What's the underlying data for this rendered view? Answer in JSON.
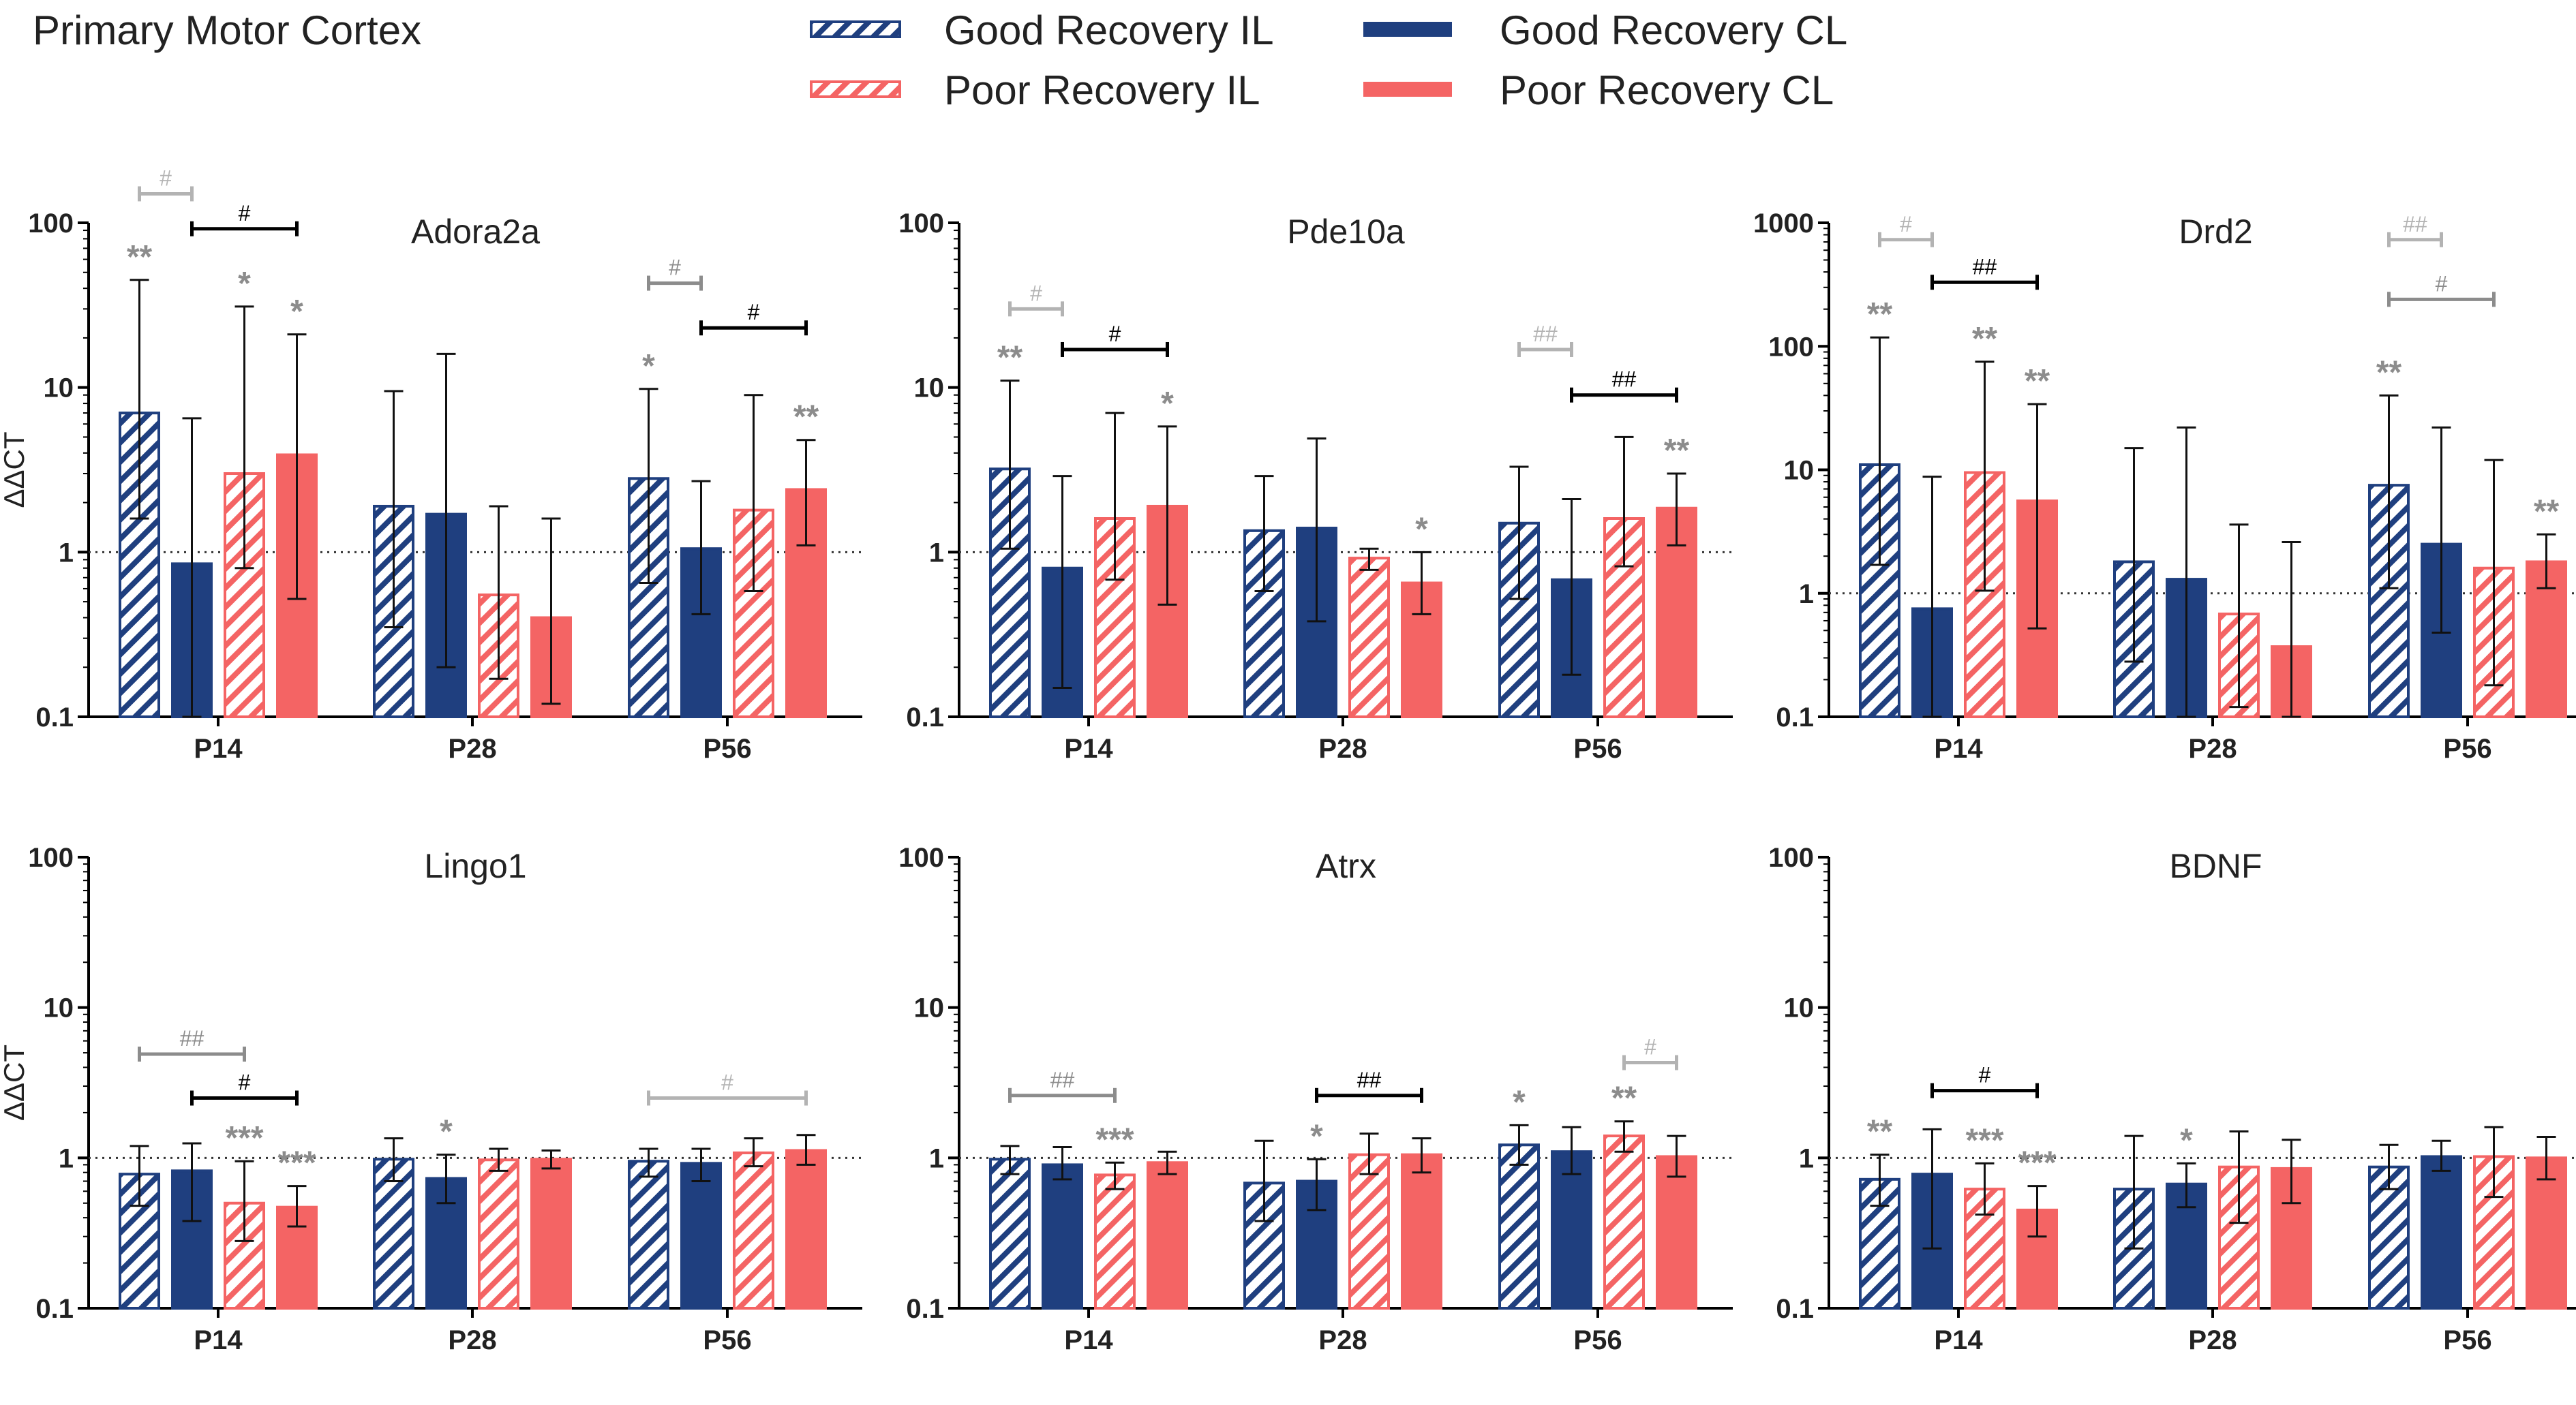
{
  "figure": {
    "title": "Primary Motor  Cortex",
    "legend": [
      {
        "label": "Good Recovery IL",
        "color": "#1f3f7f",
        "fill": "hatched"
      },
      {
        "label": "Poor Recovery IL",
        "color": "#f46464",
        "fill": "hatched"
      },
      {
        "label": "Good Recovery CL",
        "color": "#1f3f7f",
        "fill": "solid"
      },
      {
        "label": "Poor Recovery CL",
        "color": "#f46464",
        "fill": "solid"
      }
    ]
  },
  "colors": {
    "good": "#1f3f7f",
    "poor": "#f46464",
    "sig_grey": "#8c8c8c",
    "sig_light": "#b3b3b3",
    "bracket_dark": "#000000"
  },
  "chart_data": [
    {
      "type": "bar",
      "title": "Adora2a",
      "ylabel": "ΔΔCT",
      "yscale": "log",
      "ylim": [
        0.1,
        100
      ],
      "yticks": [
        "0.1",
        "1",
        "10",
        "100"
      ],
      "categories": [
        "P14",
        "P28",
        "P56"
      ],
      "reference_line": 1,
      "series": [
        {
          "name": "Good Recovery IL",
          "values": [
            7.0,
            1.9,
            2.8
          ],
          "err_low": [
            1.6,
            0.35,
            0.65
          ],
          "err_high": [
            45,
            9.5,
            9.8
          ]
        },
        {
          "name": "Good Recovery CL",
          "values": [
            0.85,
            1.7,
            1.05
          ],
          "err_low": [
            0.1,
            0.2,
            0.42
          ],
          "err_high": [
            6.5,
            16,
            2.7
          ]
        },
        {
          "name": "Poor Recovery IL",
          "values": [
            3.0,
            0.55,
            1.8
          ],
          "err_low": [
            0.8,
            0.17,
            0.58
          ],
          "err_high": [
            31,
            1.9,
            9.0
          ]
        },
        {
          "name": "Poor Recovery CL",
          "values": [
            3.9,
            0.4,
            2.4
          ],
          "err_low": [
            0.52,
            0.12,
            1.1
          ],
          "err_high": [
            21,
            1.6,
            4.8
          ]
        }
      ],
      "annotations": [
        {
          "group": 0,
          "series": 0,
          "text": "**",
          "shade": "grey"
        },
        {
          "group": 0,
          "series": 2,
          "text": "*",
          "shade": "grey"
        },
        {
          "group": 0,
          "series": 3,
          "text": "*",
          "shade": "grey"
        },
        {
          "group": 2,
          "series": 0,
          "text": "*",
          "shade": "grey"
        },
        {
          "group": 2,
          "series": 3,
          "text": "**",
          "shade": "grey"
        }
      ],
      "brackets": [
        {
          "group": 0,
          "from": 0,
          "to": 1,
          "text": "#",
          "shade": "light",
          "level": 150
        },
        {
          "group": 0,
          "from": 1,
          "to": 3,
          "text": "#",
          "shade": "dark",
          "level": 92
        },
        {
          "group": 2,
          "from": 0,
          "to": 1,
          "text": "#",
          "shade": "grey",
          "level": 43
        },
        {
          "group": 2,
          "from": 1,
          "to": 3,
          "text": "#",
          "shade": "dark",
          "level": 23
        }
      ]
    },
    {
      "type": "bar",
      "title": "Pde10a",
      "ylabel": "",
      "yscale": "log",
      "ylim": [
        0.1,
        100
      ],
      "yticks": [
        "0.1",
        "1",
        "10",
        "100"
      ],
      "categories": [
        "P14",
        "P28",
        "P56"
      ],
      "reference_line": 1,
      "series": [
        {
          "name": "Good Recovery IL",
          "values": [
            3.2,
            1.35,
            1.5
          ],
          "err_low": [
            1.05,
            0.58,
            0.52
          ],
          "err_high": [
            11,
            2.9,
            3.3
          ]
        },
        {
          "name": "Good Recovery CL",
          "values": [
            0.8,
            1.4,
            0.68
          ],
          "err_low": [
            0.15,
            0.38,
            0.18
          ],
          "err_high": [
            2.9,
            4.9,
            2.1
          ]
        },
        {
          "name": "Poor Recovery IL",
          "values": [
            1.6,
            0.92,
            1.6
          ],
          "err_low": [
            0.68,
            0.78,
            0.82
          ],
          "err_high": [
            7.0,
            1.05,
            5.0
          ]
        },
        {
          "name": "Poor Recovery CL",
          "values": [
            1.9,
            0.65,
            1.85
          ],
          "err_low": [
            0.48,
            0.42,
            1.1
          ],
          "err_high": [
            5.8,
            1.0,
            3.0
          ]
        }
      ],
      "annotations": [
        {
          "group": 0,
          "series": 0,
          "text": "**",
          "shade": "grey"
        },
        {
          "group": 0,
          "series": 3,
          "text": "*",
          "shade": "grey"
        },
        {
          "group": 1,
          "series": 3,
          "text": "*",
          "shade": "grey"
        },
        {
          "group": 2,
          "series": 3,
          "text": "**",
          "shade": "grey"
        }
      ],
      "brackets": [
        {
          "group": 0,
          "from": 0,
          "to": 1,
          "text": "#",
          "shade": "light",
          "level": 30
        },
        {
          "group": 0,
          "from": 1,
          "to": 3,
          "text": "#",
          "shade": "dark",
          "level": 17
        },
        {
          "group": 2,
          "from": 0,
          "to": 1,
          "text": "##",
          "shade": "light",
          "level": 17
        },
        {
          "group": 2,
          "from": 1,
          "to": 3,
          "text": "##",
          "shade": "dark",
          "level": 9
        }
      ]
    },
    {
      "type": "bar",
      "title": "Drd2",
      "ylabel": "",
      "yscale": "log",
      "ylim": [
        0.1,
        1000
      ],
      "yticks": [
        "0.1",
        "1",
        "10",
        "100",
        "1000"
      ],
      "categories": [
        "P14",
        "P28",
        "P56"
      ],
      "reference_line": 1,
      "series": [
        {
          "name": "Good Recovery IL",
          "values": [
            11,
            1.8,
            7.5
          ],
          "err_low": [
            1.7,
            0.28,
            1.1
          ],
          "err_high": [
            118,
            15,
            40
          ]
        },
        {
          "name": "Good Recovery CL",
          "values": [
            0.75,
            1.3,
            2.5
          ],
          "err_low": [
            0.1,
            0.1,
            0.48
          ],
          "err_high": [
            8.8,
            22,
            22
          ]
        },
        {
          "name": "Poor Recovery IL",
          "values": [
            9.5,
            0.68,
            1.6
          ],
          "err_low": [
            1.05,
            0.12,
            0.18
          ],
          "err_high": [
            75,
            3.6,
            12
          ]
        },
        {
          "name": "Poor Recovery CL",
          "values": [
            5.6,
            0.37,
            1.8
          ],
          "err_low": [
            0.52,
            0.1,
            1.1
          ],
          "err_high": [
            34,
            2.6,
            3.0
          ]
        }
      ],
      "annotations": [
        {
          "group": 0,
          "series": 0,
          "text": "**",
          "shade": "grey"
        },
        {
          "group": 0,
          "series": 2,
          "text": "**",
          "shade": "grey"
        },
        {
          "group": 0,
          "series": 3,
          "text": "**",
          "shade": "grey"
        },
        {
          "group": 2,
          "series": 0,
          "text": "**",
          "shade": "grey"
        },
        {
          "group": 2,
          "series": 3,
          "text": "**",
          "shade": "grey"
        }
      ],
      "brackets": [
        {
          "group": 0,
          "from": 0,
          "to": 1,
          "text": "#",
          "shade": "light",
          "level": 730
        },
        {
          "group": 0,
          "from": 1,
          "to": 3,
          "text": "##",
          "shade": "dark",
          "level": 330
        },
        {
          "group": 2,
          "from": 0,
          "to": 1,
          "text": "##",
          "shade": "light",
          "level": 730
        },
        {
          "group": 2,
          "from": 0,
          "to": 2,
          "text": "#",
          "shade": "grey",
          "level": 240
        }
      ]
    },
    {
      "type": "bar",
      "title": "Lingo1",
      "ylabel": "ΔΔCT",
      "yscale": "log",
      "ylim": [
        0.1,
        100
      ],
      "yticks": [
        "0.1",
        "1",
        "10",
        "100"
      ],
      "categories": [
        "P14",
        "P28",
        "P56"
      ],
      "reference_line": 1,
      "series": [
        {
          "name": "Good Recovery IL",
          "values": [
            0.78,
            0.98,
            0.95
          ],
          "err_low": [
            0.48,
            0.7,
            0.75
          ],
          "err_high": [
            1.2,
            1.35,
            1.15
          ]
        },
        {
          "name": "Good Recovery CL",
          "values": [
            0.82,
            0.73,
            0.92
          ],
          "err_low": [
            0.38,
            0.5,
            0.7
          ],
          "err_high": [
            1.25,
            1.05,
            1.15
          ]
        },
        {
          "name": "Poor Recovery IL",
          "values": [
            0.5,
            0.97,
            1.08
          ],
          "err_low": [
            0.28,
            0.82,
            0.88
          ],
          "err_high": [
            0.95,
            1.15,
            1.35
          ]
        },
        {
          "name": "Poor Recovery CL",
          "values": [
            0.47,
            0.98,
            1.12
          ],
          "err_low": [
            0.35,
            0.85,
            0.9
          ],
          "err_high": [
            0.65,
            1.12,
            1.42
          ]
        }
      ],
      "annotations": [
        {
          "group": 0,
          "series": 2,
          "text": "***",
          "shade": "grey"
        },
        {
          "group": 0,
          "series": 3,
          "text": "***",
          "shade": "grey"
        },
        {
          "group": 1,
          "series": 1,
          "text": "*",
          "shade": "grey"
        }
      ],
      "brackets": [
        {
          "group": 0,
          "from": 0,
          "to": 2,
          "text": "##",
          "shade": "grey",
          "level": 4.9
        },
        {
          "group": 0,
          "from": 1,
          "to": 3,
          "text": "#",
          "shade": "dark",
          "level": 2.5
        },
        {
          "group": 2,
          "from": 0,
          "to": 3,
          "text": "#",
          "shade": "light",
          "level": 2.5
        }
      ]
    },
    {
      "type": "bar",
      "title": "Atrx",
      "ylabel": "",
      "yscale": "log",
      "ylim": [
        0.1,
        100
      ],
      "yticks": [
        "0.1",
        "1",
        "10",
        "100"
      ],
      "categories": [
        "P14",
        "P28",
        "P56"
      ],
      "reference_line": 1,
      "series": [
        {
          "name": "Good Recovery IL",
          "values": [
            0.98,
            0.68,
            1.22
          ],
          "err_low": [
            0.78,
            0.38,
            0.9
          ],
          "err_high": [
            1.2,
            1.3,
            1.65
          ]
        },
        {
          "name": "Good Recovery CL",
          "values": [
            0.9,
            0.7,
            1.1
          ],
          "err_low": [
            0.72,
            0.45,
            0.78
          ],
          "err_high": [
            1.18,
            0.98,
            1.6
          ]
        },
        {
          "name": "Poor Recovery IL",
          "values": [
            0.77,
            1.05,
            1.4
          ],
          "err_low": [
            0.62,
            0.78,
            1.1
          ],
          "err_high": [
            0.93,
            1.45,
            1.75
          ]
        },
        {
          "name": "Poor Recovery CL",
          "values": [
            0.93,
            1.05,
            1.02
          ],
          "err_low": [
            0.78,
            0.8,
            0.75
          ],
          "err_high": [
            1.1,
            1.35,
            1.4
          ]
        }
      ],
      "annotations": [
        {
          "group": 0,
          "series": 2,
          "text": "***",
          "shade": "grey"
        },
        {
          "group": 1,
          "series": 1,
          "text": "*",
          "shade": "grey"
        },
        {
          "group": 2,
          "series": 0,
          "text": "*",
          "shade": "grey"
        },
        {
          "group": 2,
          "series": 2,
          "text": "**",
          "shade": "grey"
        }
      ],
      "brackets": [
        {
          "group": 0,
          "from": 0,
          "to": 2,
          "text": "##",
          "shade": "grey",
          "level": 2.6
        },
        {
          "group": 1,
          "from": 1,
          "to": 3,
          "text": "##",
          "shade": "dark",
          "level": 2.6
        },
        {
          "group": 2,
          "from": 2,
          "to": 3,
          "text": "#",
          "shade": "light",
          "level": 4.3
        }
      ]
    },
    {
      "type": "bar",
      "title": "BDNF",
      "ylabel": "",
      "yscale": "log",
      "ylim": [
        0.1,
        100
      ],
      "yticks": [
        "0.1",
        "1",
        "10",
        "100"
      ],
      "categories": [
        "P14",
        "P28",
        "P56"
      ],
      "reference_line": 1,
      "series": [
        {
          "name": "Good Recovery IL",
          "values": [
            0.72,
            0.62,
            0.87
          ],
          "err_low": [
            0.48,
            0.25,
            0.62
          ],
          "err_high": [
            1.05,
            1.4,
            1.22
          ]
        },
        {
          "name": "Good Recovery CL",
          "values": [
            0.78,
            0.67,
            1.02
          ],
          "err_low": [
            0.25,
            0.47,
            0.82
          ],
          "err_high": [
            1.55,
            0.92,
            1.3
          ]
        },
        {
          "name": "Poor Recovery IL",
          "values": [
            0.62,
            0.87,
            1.02
          ],
          "err_low": [
            0.42,
            0.37,
            0.55
          ],
          "err_high": [
            0.92,
            1.5,
            1.6
          ]
        },
        {
          "name": "Poor Recovery CL",
          "values": [
            0.45,
            0.85,
            1.0
          ],
          "err_low": [
            0.3,
            0.5,
            0.72
          ],
          "err_high": [
            0.65,
            1.32,
            1.38
          ]
        }
      ],
      "annotations": [
        {
          "group": 0,
          "series": 0,
          "text": "**",
          "shade": "grey"
        },
        {
          "group": 0,
          "series": 2,
          "text": "***",
          "shade": "grey"
        },
        {
          "group": 0,
          "series": 3,
          "text": "***",
          "shade": "grey"
        },
        {
          "group": 1,
          "series": 1,
          "text": "*",
          "shade": "grey"
        }
      ],
      "brackets": [
        {
          "group": 0,
          "from": 1,
          "to": 3,
          "text": "#",
          "shade": "dark",
          "level": 2.8
        }
      ]
    }
  ]
}
